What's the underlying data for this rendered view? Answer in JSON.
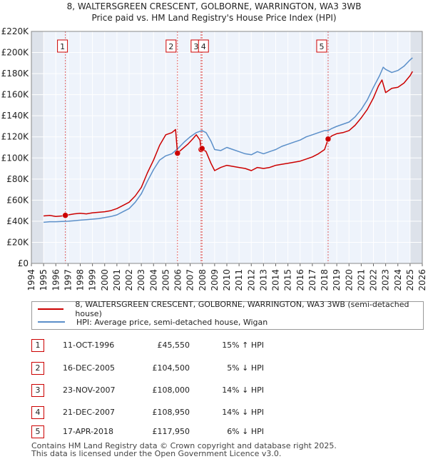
{
  "chart_data": {
    "type": "line",
    "title": "8, WALTERSGREEN CRESCENT, GOLBORNE, WARRINGTON, WA3 3WB",
    "subtitle": "Price paid vs. HM Land Registry's House Price Index (HPI)",
    "xlabel": "",
    "ylabel": "",
    "xlim": [
      1994,
      2026
    ],
    "ylim": [
      0,
      220000
    ],
    "x_ticks": [
      "1994",
      "1995",
      "1996",
      "1997",
      "1998",
      "1999",
      "2000",
      "2001",
      "2002",
      "2003",
      "2004",
      "2005",
      "2006",
      "2007",
      "2008",
      "2009",
      "2010",
      "2011",
      "2012",
      "2013",
      "2014",
      "2015",
      "2016",
      "2017",
      "2018",
      "2019",
      "2020",
      "2021",
      "2022",
      "2023",
      "2024",
      "2025",
      "2026"
    ],
    "y_ticks": [
      {
        "value": 0,
        "label": "£0"
      },
      {
        "value": 20000,
        "label": "£20K"
      },
      {
        "value": 40000,
        "label": "£40K"
      },
      {
        "value": 60000,
        "label": "£60K"
      },
      {
        "value": 80000,
        "label": "£80K"
      },
      {
        "value": 100000,
        "label": "£100K"
      },
      {
        "value": 120000,
        "label": "£120K"
      },
      {
        "value": 140000,
        "label": "£140K"
      },
      {
        "value": 160000,
        "label": "£160K"
      },
      {
        "value": 180000,
        "label": "£180K"
      },
      {
        "value": 200000,
        "label": "£200K"
      },
      {
        "value": 220000,
        "label": "£220K"
      }
    ],
    "shaded_ranges": [
      [
        1994,
        1995
      ],
      [
        2025,
        2026
      ]
    ],
    "series": [
      {
        "name": "8, WALTERSGREEN CRESCENT, GOLBORNE, WARRINGTON, WA3 3WB (semi-detached house)",
        "color": "#cc0000",
        "points": [
          [
            1995.0,
            45000
          ],
          [
            1995.5,
            45500
          ],
          [
            1996.0,
            44500
          ],
          [
            1996.5,
            45000
          ],
          [
            1996.78,
            45550
          ],
          [
            1997.5,
            47000
          ],
          [
            1998.0,
            47500
          ],
          [
            1998.5,
            47000
          ],
          [
            1999.0,
            48000
          ],
          [
            1999.5,
            48500
          ],
          [
            2000.0,
            49000
          ],
          [
            2000.5,
            50000
          ],
          [
            2001.0,
            52000
          ],
          [
            2001.5,
            55000
          ],
          [
            2002.0,
            58000
          ],
          [
            2002.5,
            64000
          ],
          [
            2003.0,
            72000
          ],
          [
            2003.5,
            86000
          ],
          [
            2004.0,
            98000
          ],
          [
            2004.5,
            112000
          ],
          [
            2005.0,
            122000
          ],
          [
            2005.5,
            124000
          ],
          [
            2005.8,
            127000
          ],
          [
            2005.96,
            104500
          ],
          [
            2006.3,
            108000
          ],
          [
            2006.8,
            113000
          ],
          [
            2007.2,
            118000
          ],
          [
            2007.5,
            122000
          ],
          [
            2007.8,
            117000
          ],
          [
            2007.89,
            108000
          ],
          [
            2007.97,
            108950
          ],
          [
            2008.3,
            106000
          ],
          [
            2008.7,
            95000
          ],
          [
            2009.0,
            88000
          ],
          [
            2009.5,
            91000
          ],
          [
            2010.0,
            93000
          ],
          [
            2010.5,
            92000
          ],
          [
            2011.0,
            91000
          ],
          [
            2011.5,
            90000
          ],
          [
            2012.0,
            88000
          ],
          [
            2012.5,
            91000
          ],
          [
            2013.0,
            90000
          ],
          [
            2013.5,
            91000
          ],
          [
            2014.0,
            93000
          ],
          [
            2014.5,
            94000
          ],
          [
            2015.0,
            95000
          ],
          [
            2015.5,
            96000
          ],
          [
            2016.0,
            97000
          ],
          [
            2016.5,
            99000
          ],
          [
            2017.0,
            101000
          ],
          [
            2017.5,
            104000
          ],
          [
            2018.0,
            108000
          ],
          [
            2018.29,
            117950
          ],
          [
            2018.6,
            121000
          ],
          [
            2019.0,
            123000
          ],
          [
            2019.5,
            124000
          ],
          [
            2020.0,
            126000
          ],
          [
            2020.5,
            131000
          ],
          [
            2021.0,
            138000
          ],
          [
            2021.5,
            146000
          ],
          [
            2022.0,
            157000
          ],
          [
            2022.4,
            168000
          ],
          [
            2022.7,
            174000
          ],
          [
            2023.0,
            162000
          ],
          [
            2023.5,
            166000
          ],
          [
            2024.0,
            167000
          ],
          [
            2024.5,
            171000
          ],
          [
            2025.0,
            178000
          ],
          [
            2025.2,
            182000
          ]
        ]
      },
      {
        "name": "HPI: Average price, semi-detached house, Wigan",
        "color": "#5b8fc9",
        "points": [
          [
            1995.0,
            39000
          ],
          [
            1995.5,
            39500
          ],
          [
            1996.0,
            39500
          ],
          [
            1996.5,
            39800
          ],
          [
            1997.0,
            40000
          ],
          [
            1997.5,
            40500
          ],
          [
            1998.0,
            41000
          ],
          [
            1998.5,
            41500
          ],
          [
            1999.0,
            42000
          ],
          [
            1999.5,
            42500
          ],
          [
            2000.0,
            43500
          ],
          [
            2000.5,
            44500
          ],
          [
            2001.0,
            46000
          ],
          [
            2001.5,
            49000
          ],
          [
            2002.0,
            52000
          ],
          [
            2002.5,
            58000
          ],
          [
            2003.0,
            66000
          ],
          [
            2003.5,
            78000
          ],
          [
            2004.0,
            89000
          ],
          [
            2004.5,
            98000
          ],
          [
            2005.0,
            102000
          ],
          [
            2005.5,
            104000
          ],
          [
            2006.0,
            109000
          ],
          [
            2006.5,
            115000
          ],
          [
            2007.0,
            120000
          ],
          [
            2007.5,
            124000
          ],
          [
            2007.97,
            126000
          ],
          [
            2008.3,
            124000
          ],
          [
            2008.7,
            116000
          ],
          [
            2009.0,
            108000
          ],
          [
            2009.5,
            107000
          ],
          [
            2010.0,
            110000
          ],
          [
            2010.5,
            108000
          ],
          [
            2011.0,
            106000
          ],
          [
            2011.5,
            104000
          ],
          [
            2012.0,
            103000
          ],
          [
            2012.5,
            106000
          ],
          [
            2013.0,
            104000
          ],
          [
            2013.5,
            106000
          ],
          [
            2014.0,
            108000
          ],
          [
            2014.5,
            111000
          ],
          [
            2015.0,
            113000
          ],
          [
            2015.5,
            115000
          ],
          [
            2016.0,
            117000
          ],
          [
            2016.5,
            120000
          ],
          [
            2017.0,
            122000
          ],
          [
            2017.5,
            124000
          ],
          [
            2018.0,
            126000
          ],
          [
            2018.3,
            126000
          ],
          [
            2018.6,
            128000
          ],
          [
            2019.0,
            130000
          ],
          [
            2019.5,
            132000
          ],
          [
            2020.0,
            134000
          ],
          [
            2020.5,
            139000
          ],
          [
            2021.0,
            146000
          ],
          [
            2021.5,
            155000
          ],
          [
            2022.0,
            167000
          ],
          [
            2022.5,
            178000
          ],
          [
            2022.8,
            186000
          ],
          [
            2023.0,
            184000
          ],
          [
            2023.5,
            181000
          ],
          [
            2024.0,
            183000
          ],
          [
            2024.5,
            187000
          ],
          [
            2025.0,
            193000
          ],
          [
            2025.2,
            195000
          ]
        ]
      }
    ],
    "sales": [
      {
        "label": "1",
        "x": 1996.78,
        "price": 45550
      },
      {
        "label": "2",
        "x": 2005.96,
        "price": 104500
      },
      {
        "label": "3",
        "x": 2007.89,
        "price": 108000
      },
      {
        "label": "4",
        "x": 2007.97,
        "price": 108950
      },
      {
        "label": "5",
        "x": 2018.29,
        "price": 117950
      }
    ]
  },
  "legend": {
    "items": [
      {
        "label": "8, WALTERSGREEN CRESCENT, GOLBORNE, WARRINGTON, WA3 3WB (semi-detached house)",
        "color": "#cc0000"
      },
      {
        "label": "HPI: Average price, semi-detached house, Wigan",
        "color": "#5b8fc9"
      }
    ]
  },
  "transactions": [
    {
      "num": "1",
      "date": "11-OCT-1996",
      "price": "£45,550",
      "hpi": "15% ↑ HPI"
    },
    {
      "num": "2",
      "date": "16-DEC-2005",
      "price": "£104,500",
      "hpi": "5% ↓ HPI"
    },
    {
      "num": "3",
      "date": "23-NOV-2007",
      "price": "£108,000",
      "hpi": "14% ↓ HPI"
    },
    {
      "num": "4",
      "date": "21-DEC-2007",
      "price": "£108,950",
      "hpi": "14% ↓ HPI"
    },
    {
      "num": "5",
      "date": "17-APR-2018",
      "price": "£117,950",
      "hpi": "6% ↓ HPI"
    }
  ],
  "footer": {
    "line1": "Contains HM Land Registry data © Crown copyright and database right 2025.",
    "line2": "This data is licensed under the Open Government Licence v3.0."
  }
}
